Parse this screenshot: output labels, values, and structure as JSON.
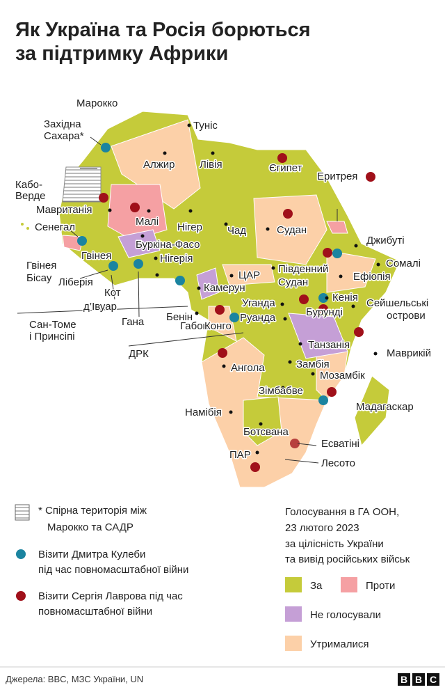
{
  "title": [
    "Як Україна та Росія борються",
    "за підтримку Африки"
  ],
  "map_labels": {
    "morocco": "Марокко",
    "western_sahara": [
      "Західна",
      "Сахара*"
    ],
    "tunisia": "Туніс",
    "algeria": "Алжир",
    "libya": "Лівія",
    "egypt": "Єгипет",
    "eritrea": "Еритрея",
    "cape_verde": [
      "Кабо-",
      "Верде"
    ],
    "mauritania": "Мавританія",
    "mali": "Малі",
    "niger": "Нігер",
    "chad": "Чад",
    "sudan": "Судан",
    "senegal": "Сенегал",
    "guinea": "Гвінея",
    "burkina_faso": "Буркіна-Фасо",
    "nigeria": "Нігерія",
    "djibouti": "Джибуті",
    "guinea_bissau": [
      "Гвінея",
      "Бісау"
    ],
    "liberia": "Ліберія",
    "south_sudan": [
      "Південний",
      "Судан"
    ],
    "ethiopia": "Ефіопія",
    "somalia": "Сомалі",
    "car": "ЦАР",
    "cote_divoire": [
      "Кот",
      "д’Івуар"
    ],
    "cameroon": "Камерун",
    "benin": "Бенін",
    "ghana": "Гана",
    "uganda": "Уганда",
    "kenya": "Кенія",
    "seychelles": [
      "Сейшельські",
      "острови"
    ],
    "sao_tome": [
      "Сан-Томе",
      "і Принсіпі"
    ],
    "gabon": "Габон",
    "congo": "Конго",
    "rwanda": "Руанда",
    "burundi": "Бурунді",
    "tanzania": "Танзанія",
    "drc": "ДРК",
    "mauritius": "Маврикій",
    "angola": "Ангола",
    "zambia": "Замбія",
    "mozambique": "Мозамбік",
    "zimbabwe": "Зімбабве",
    "madagascar": "Мадагаскар",
    "namibia": "Намібія",
    "botswana": "Ботсвана",
    "eswatini": "Есватіні",
    "south_africa": "ПАР",
    "lesotho": "Лесото"
  },
  "key": {
    "disputed": [
      "* Спірна територія між",
      "Марокко та САДР"
    ],
    "kuleba": [
      "Візити Дмитра Кулеби",
      "під час повномасштабної війни"
    ],
    "lavrov": [
      "Візити Сергія Лаврова під час",
      "повномасштабної війни"
    ]
  },
  "vote": {
    "title": [
      "Голосування в ГА ООН,",
      "23 лютого 2023",
      "за цілісність України",
      "та вивід російських військ"
    ],
    "for": "За",
    "against": "Проти",
    "not_voted": "Не голосували",
    "abstained": "Утрималися"
  },
  "source": "Джерела: BBC, МЗС України, UN",
  "logo": [
    "B",
    "B",
    "C"
  ]
}
